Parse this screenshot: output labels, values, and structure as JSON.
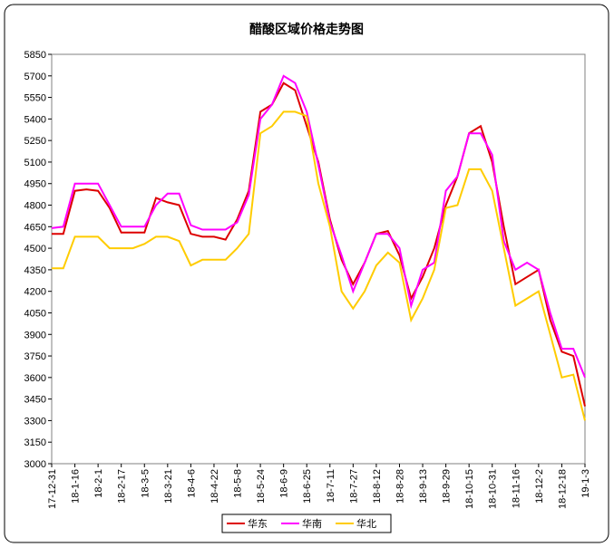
{
  "chart_data": {
    "type": "line",
    "title": "醋酸区域价格走势图",
    "categories": [
      "17-12-31",
      null,
      "18-1-16",
      null,
      "18-2-1",
      null,
      "18-2-17",
      null,
      "18-3-5",
      null,
      "18-3-21",
      null,
      "18-4-6",
      null,
      "18-4-22",
      null,
      "18-5-8",
      null,
      "18-5-24",
      null,
      "18-6-9",
      null,
      "18-6-25",
      null,
      "18-7-11",
      null,
      "18-7-27",
      null,
      "18-8-12",
      null,
      "18-8-28",
      null,
      "18-9-13",
      null,
      "18-9-29",
      null,
      "18-10-15",
      null,
      "18-10-31",
      null,
      "18-11-16",
      null,
      "18-12-2",
      null,
      "18-12-18",
      null,
      "19-1-3"
    ],
    "series": [
      {
        "name": "华东",
        "color": "#dd0000",
        "values": [
          4600,
          4600,
          4900,
          4910,
          4900,
          4780,
          4610,
          4610,
          4610,
          4850,
          4820,
          4800,
          4600,
          4580,
          4580,
          4560,
          4700,
          4900,
          5450,
          5500,
          5650,
          5600,
          5350,
          5100,
          4700,
          4420,
          4250,
          4400,
          4600,
          4620,
          4450,
          4150,
          4300,
          4500,
          4800,
          5000,
          5300,
          5350,
          5100,
          4650,
          4250,
          4300,
          4350,
          4000,
          3780,
          3750,
          3400
        ]
      },
      {
        "name": "华南",
        "color": "#ff00ff",
        "values": [
          4640,
          4650,
          4950,
          4950,
          4950,
          4800,
          4650,
          4650,
          4650,
          4800,
          4880,
          4880,
          4660,
          4630,
          4630,
          4630,
          4680,
          4870,
          5400,
          5500,
          5700,
          5650,
          5450,
          5080,
          4680,
          4450,
          4200,
          4400,
          4600,
          4600,
          4500,
          4100,
          4350,
          4400,
          4900,
          5000,
          5300,
          5300,
          5150,
          4550,
          4350,
          4400,
          4350,
          4050,
          3800,
          3800,
          3600
        ]
      },
      {
        "name": "华北",
        "color": "#ffcc00",
        "values": [
          4360,
          4360,
          4580,
          4580,
          4580,
          4500,
          4500,
          4500,
          4530,
          4580,
          4580,
          4550,
          4380,
          4420,
          4420,
          4420,
          4500,
          4600,
          5300,
          5350,
          5450,
          5450,
          5420,
          4950,
          4650,
          4200,
          4080,
          4200,
          4380,
          4470,
          4400,
          4000,
          4150,
          4350,
          4780,
          4800,
          5050,
          5050,
          4900,
          4500,
          4100,
          4150,
          4200,
          3900,
          3600,
          3620,
          3300
        ]
      }
    ],
    "ylim": [
      3000,
      5850
    ],
    "yticks": [
      3000,
      3150,
      3300,
      3450,
      3600,
      3750,
      3900,
      4050,
      4200,
      4350,
      4500,
      4650,
      4800,
      4950,
      5100,
      5250,
      5400,
      5550,
      5700,
      5850
    ],
    "grid": false,
    "legend": "bottom"
  }
}
